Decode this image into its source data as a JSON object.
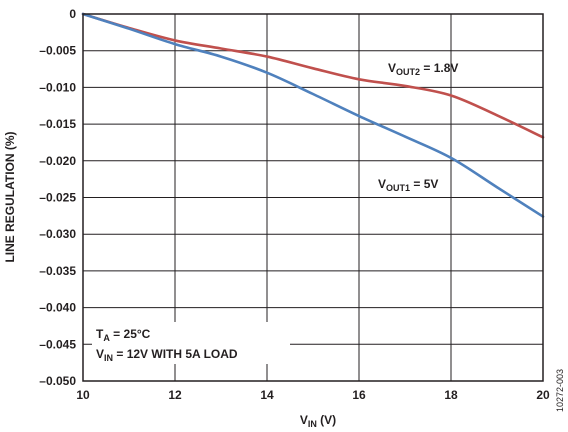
{
  "chart_data": {
    "type": "line",
    "xlabel": {
      "main": "V",
      "sub": "IN",
      "unit": " (V)"
    },
    "ylabel": "LINE REGULATION (%)",
    "xlim": [
      10,
      20
    ],
    "ylim": [
      -0.05,
      0
    ],
    "x_ticks": [
      "10",
      "12",
      "14",
      "16",
      "18",
      "20"
    ],
    "y_ticks": [
      "0",
      "–0.005",
      "–0.010",
      "–0.015",
      "–0.020",
      "–0.025",
      "–0.030",
      "–0.035",
      "–0.040",
      "–0.045",
      "–0.050"
    ],
    "grid": true,
    "series": [
      {
        "name": "V_OUT2 = 1.8V",
        "label": {
          "main": "V",
          "sub": "OUT2",
          "rest": " = 1.8V"
        },
        "color": "#c0504d",
        "x": [
          10,
          11,
          12,
          13,
          14,
          15,
          16,
          17,
          18,
          19,
          20
        ],
        "y": [
          0,
          -0.0019,
          -0.0036,
          -0.0047,
          -0.0058,
          -0.0074,
          -0.0089,
          -0.0098,
          -0.0111,
          -0.0138,
          -0.0168
        ]
      },
      {
        "name": "V_OUT1 = 5V",
        "label": {
          "main": "V",
          "sub": "OUT1",
          "rest": " = 5V"
        },
        "color": "#4f81bd",
        "x": [
          10,
          11,
          12,
          13,
          14,
          15,
          16,
          17,
          18,
          19,
          20
        ],
        "y": [
          0,
          -0.002,
          -0.0041,
          -0.0058,
          -0.008,
          -0.0109,
          -0.0139,
          -0.0167,
          -0.0196,
          -0.0236,
          -0.0276
        ]
      }
    ],
    "annotations": {
      "ta": {
        "main": "T",
        "sub": "A",
        "rest": " = 25°C"
      },
      "vin": {
        "main": "V",
        "sub": "IN",
        "rest": " = 12V WITH 5A LOAD"
      }
    },
    "figure_id": "10272-003"
  }
}
